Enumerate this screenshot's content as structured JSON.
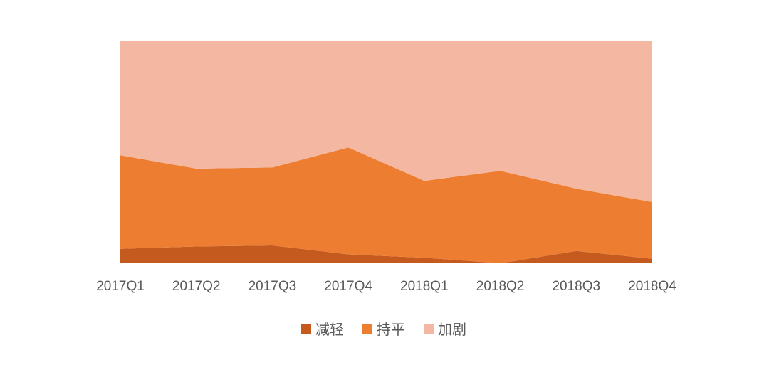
{
  "chart_data": {
    "type": "area",
    "stacked": true,
    "percent_stacked": true,
    "categories": [
      "2017Q1",
      "2017Q2",
      "2017Q3",
      "2017Q4",
      "2018Q1",
      "2018Q2",
      "2018Q3",
      "2018Q4"
    ],
    "series": [
      {
        "name": "减轻",
        "values": [
          6.5,
          7.5,
          8.0,
          4.0,
          2.5,
          0.0,
          5.5,
          2.0
        ],
        "color": "#c55a1e"
      },
      {
        "name": "持平",
        "values": [
          42.0,
          35.0,
          35.0,
          48.0,
          34.5,
          41.5,
          28.0,
          25.5
        ],
        "color": "#ed7d31"
      },
      {
        "name": "加剧",
        "values": [
          51.5,
          57.5,
          57.0,
          48.0,
          63.0,
          58.5,
          66.5,
          72.5
        ],
        "color": "#f4b8a2"
      }
    ],
    "ylim": [
      0,
      100
    ],
    "y_axis_visible": false,
    "grid": false,
    "legend_position": "bottom"
  }
}
